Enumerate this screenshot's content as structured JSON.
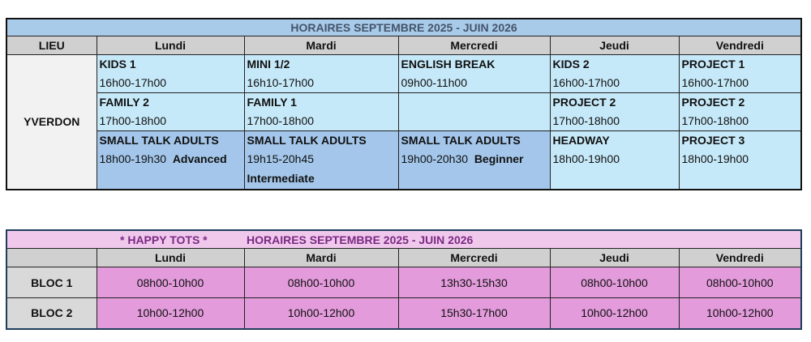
{
  "schedule": {
    "title": "HORAIRES SEPTEMBRE 2025 - JUIN 2026",
    "headers": [
      "LIEU",
      "Lundi",
      "Mardi",
      "Mercredi",
      "Jeudi",
      "Vendredi"
    ],
    "location": "YVERDON",
    "rows": [
      [
        {
          "cls": "KIDS 1",
          "time": "16h00-17h00"
        },
        {
          "cls": "MINI 1/2",
          "time": "16h10-17h00"
        },
        {
          "cls": "ENGLISH BREAK",
          "time": "09h00-11h00"
        },
        {
          "cls": "KIDS 2",
          "time": "16h00-17h00"
        },
        {
          "cls": "PROJECT 1",
          "time": "16h00-17h00"
        }
      ],
      [
        {
          "cls": "FAMILY 2",
          "time": "17h00-18h00"
        },
        {
          "cls": "FAMILY 1",
          "time": "17h00-18h00"
        },
        {
          "cls": "",
          "time": ""
        },
        {
          "cls": "PROJECT 2",
          "time": "17h00-18h00"
        },
        {
          "cls": "PROJECT 2",
          "time": "17h00-18h00"
        }
      ],
      [
        {
          "cls": "SMALL TALK ADULTS",
          "time": "18h00-19h30",
          "level": "Advanced"
        },
        {
          "cls": "SMALL TALK ADULTS",
          "time": "19h15-20h45",
          "level": "Intermediate"
        },
        {
          "cls": "SMALL TALK ADULTS",
          "time": "19h00-20h30",
          "level": "Beginner"
        },
        {
          "cls": "HEADWAY",
          "time": "18h00-19h00"
        },
        {
          "cls": "PROJECT 3",
          "time": "18h00-19h00"
        }
      ]
    ]
  },
  "happy_tots": {
    "label": "* HAPPY TOTS *",
    "title": "HORAIRES SEPTEMBRE 2025 - JUIN 2026",
    "headers": [
      "",
      "Lundi",
      "Mardi",
      "Mercredi",
      "Jeudi",
      "Vendredi"
    ],
    "rows": [
      {
        "bloc": "BLOC 1",
        "times": [
          "08h00-10h00",
          "08h00-10h00",
          "13h30-15h30",
          "08h00-10h00",
          "08h00-10h00"
        ]
      },
      {
        "bloc": "BLOC 2",
        "times": [
          "10h00-12h00",
          "10h00-12h00",
          "15h30-17h00",
          "10h00-12h00",
          "10h00-12h00"
        ]
      }
    ]
  },
  "colors": {
    "title_bg": "#a9cbea",
    "light_cell": "#c6e9f9",
    "dark_cell": "#a3c6ea",
    "pink_cell": "#e39bdb",
    "pink_title": "#7b2a83"
  }
}
